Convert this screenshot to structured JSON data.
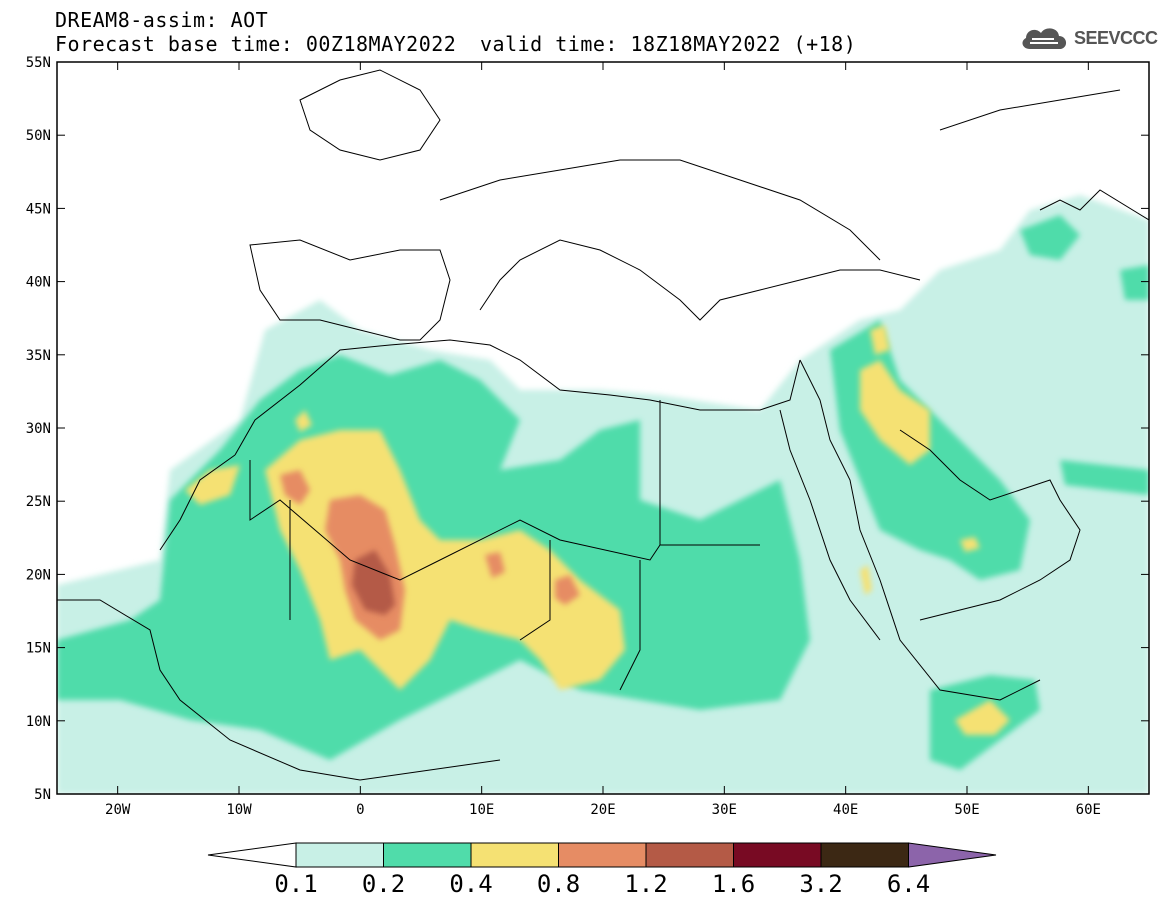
{
  "title": {
    "line1": "DREAM8-assim: AOT",
    "line2": "Forecast base time: 00Z18MAY2022",
    "valid": "valid time: 18Z18MAY2022 (+18)"
  },
  "logo": {
    "text": "SEEVCCC",
    "icon": "cloud-icon"
  },
  "map": {
    "lat_range": [
      5,
      55
    ],
    "lon_range": [
      -25,
      65
    ],
    "lat_ticks": [
      "5N",
      "10N",
      "15N",
      "20N",
      "25N",
      "30N",
      "35N",
      "40N",
      "45N",
      "50N",
      "55N"
    ],
    "lon_ticks": [
      "20W",
      "10W",
      "0",
      "10E",
      "20E",
      "30E",
      "40E",
      "50E",
      "60E"
    ],
    "max_region": "southern Algeria / northern Mali",
    "layer": "dust aerosol optical thickness"
  },
  "colorbar": {
    "labels": [
      "0.1",
      "0.2",
      "0.4",
      "0.8",
      "1.2",
      "1.6",
      "3.2",
      "6.4"
    ],
    "colors": [
      "#c8f0e6",
      "#50dcaa",
      "#f5e173",
      "#e68c64",
      "#b45a46",
      "#780a23",
      "#3c2814",
      "#8c64aa"
    ]
  }
}
